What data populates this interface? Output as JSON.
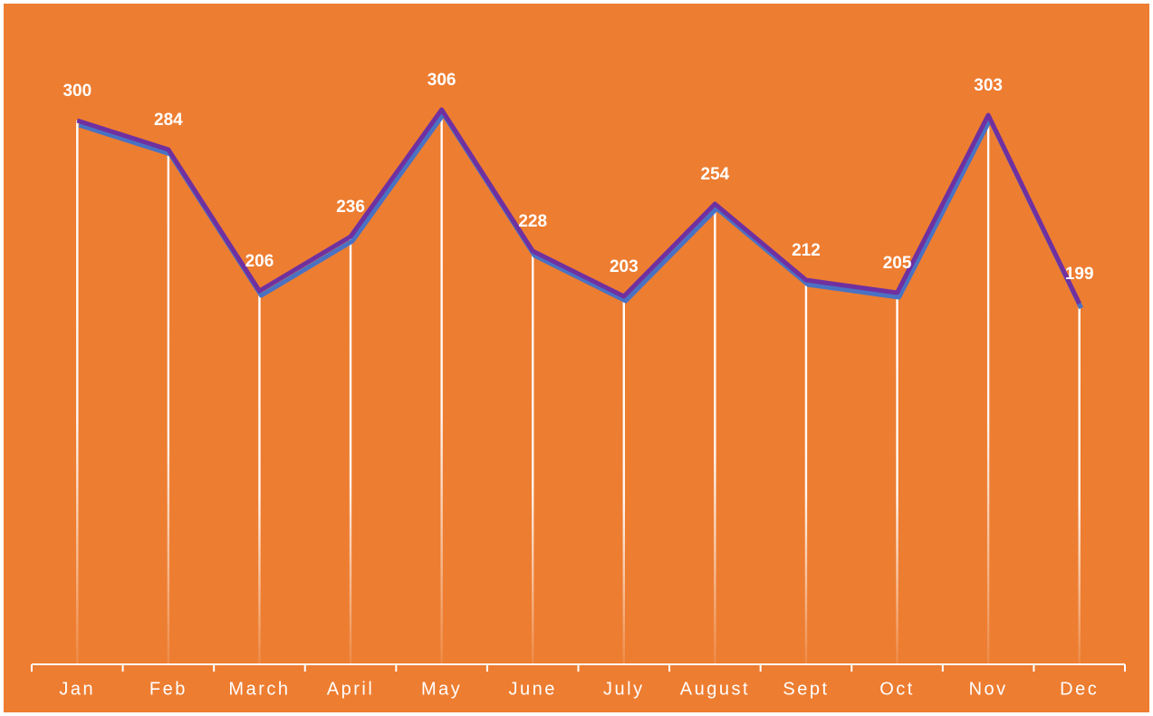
{
  "chart_data": {
    "type": "line",
    "categories": [
      "Jan",
      "Feb",
      "March",
      "April",
      "May",
      "June",
      "July",
      "August",
      "Sept",
      "Oct",
      "Nov",
      "Dec"
    ],
    "values": [
      300,
      284,
      206,
      236,
      306,
      228,
      203,
      254,
      212,
      205,
      303,
      199
    ],
    "color": "#7030a0",
    "ylim": [
      0,
      350
    ]
  }
}
